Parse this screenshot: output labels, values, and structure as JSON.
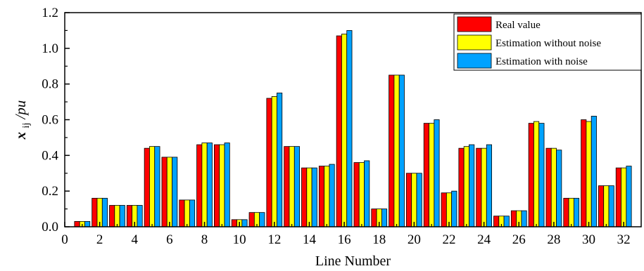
{
  "chart_data": {
    "type": "bar",
    "xlabel": "Line Number",
    "ylabel": {
      "var": "x",
      "sub": "ij",
      "unit": "/pu"
    },
    "ylim": [
      0,
      1.2
    ],
    "yticks": [
      "0.0",
      "0.2",
      "0.4",
      "0.6",
      "0.8",
      "1.0",
      "1.2"
    ],
    "xlim": [
      0,
      33
    ],
    "xticks": [
      "0",
      "2",
      "4",
      "6",
      "8",
      "10",
      "12",
      "14",
      "16",
      "18",
      "20",
      "22",
      "24",
      "26",
      "28",
      "30",
      "32"
    ],
    "legend_position": "top-right",
    "categories": [
      1,
      2,
      3,
      4,
      5,
      6,
      7,
      8,
      9,
      10,
      11,
      12,
      13,
      14,
      15,
      16,
      17,
      18,
      19,
      20,
      21,
      22,
      23,
      24,
      25,
      26,
      27,
      28,
      29,
      30,
      31,
      32
    ],
    "series": [
      {
        "name": "Real value",
        "color": "#ff0000",
        "values": [
          0.03,
          0.16,
          0.12,
          0.12,
          0.44,
          0.39,
          0.15,
          0.46,
          0.46,
          0.04,
          0.08,
          0.72,
          0.45,
          0.33,
          0.34,
          1.07,
          0.36,
          0.1,
          0.85,
          0.3,
          0.58,
          0.19,
          0.44,
          0.44,
          0.06,
          0.09,
          0.58,
          0.44,
          0.16,
          0.6,
          0.23,
          0.33
        ]
      },
      {
        "name": "Estimation without noise",
        "color": "#ffff00",
        "values": [
          0.03,
          0.16,
          0.12,
          0.12,
          0.45,
          0.39,
          0.15,
          0.47,
          0.46,
          0.04,
          0.08,
          0.73,
          0.45,
          0.33,
          0.34,
          1.08,
          0.36,
          0.1,
          0.85,
          0.3,
          0.58,
          0.19,
          0.45,
          0.44,
          0.06,
          0.09,
          0.59,
          0.44,
          0.16,
          0.59,
          0.23,
          0.33
        ]
      },
      {
        "name": "Estimation with noise",
        "color": "#00a2ff",
        "values": [
          0.03,
          0.16,
          0.12,
          0.12,
          0.45,
          0.39,
          0.15,
          0.47,
          0.47,
          0.04,
          0.08,
          0.75,
          0.45,
          0.33,
          0.35,
          1.1,
          0.37,
          0.1,
          0.85,
          0.3,
          0.6,
          0.2,
          0.46,
          0.46,
          0.06,
          0.09,
          0.58,
          0.43,
          0.16,
          0.62,
          0.23,
          0.34
        ]
      }
    ]
  }
}
